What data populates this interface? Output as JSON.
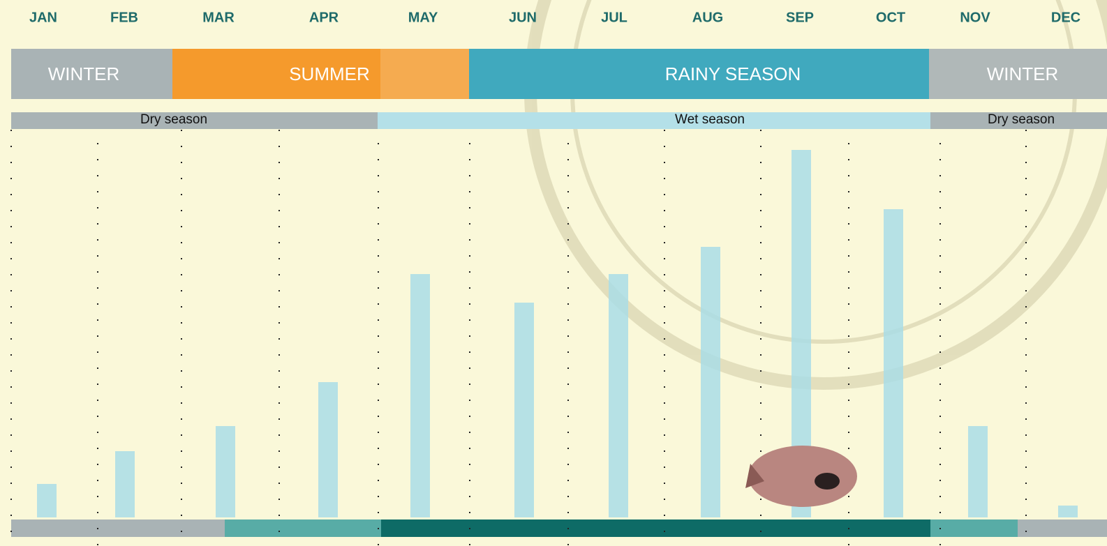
{
  "chart_data": {
    "type": "bar",
    "categories": [
      "JAN",
      "FEB",
      "MAR",
      "APR",
      "MAY",
      "JUN",
      "JUL",
      "AUG",
      "SEP",
      "OCT",
      "NOV",
      "DEC"
    ],
    "values": [
      48,
      95,
      131,
      194,
      349,
      308,
      349,
      388,
      527,
      442,
      131,
      17
    ],
    "color": "#a9dde6",
    "seasons": [
      {
        "label": "WINTER",
        "color": "#a9b3b5"
      },
      {
        "label": "SUMMER",
        "color": "#f59a2c"
      },
      {
        "label": "RAINY SEASON",
        "color": "#40a9be"
      },
      {
        "label": "WINTER",
        "color": "#b0b8b8"
      }
    ],
    "periods": [
      {
        "label": "Dry season",
        "color": "#a9b3b5"
      },
      {
        "label": "Wet season",
        "color": "#b4e0e8"
      },
      {
        "label": "Dry season",
        "color": "#a9b3b5"
      }
    ]
  }
}
